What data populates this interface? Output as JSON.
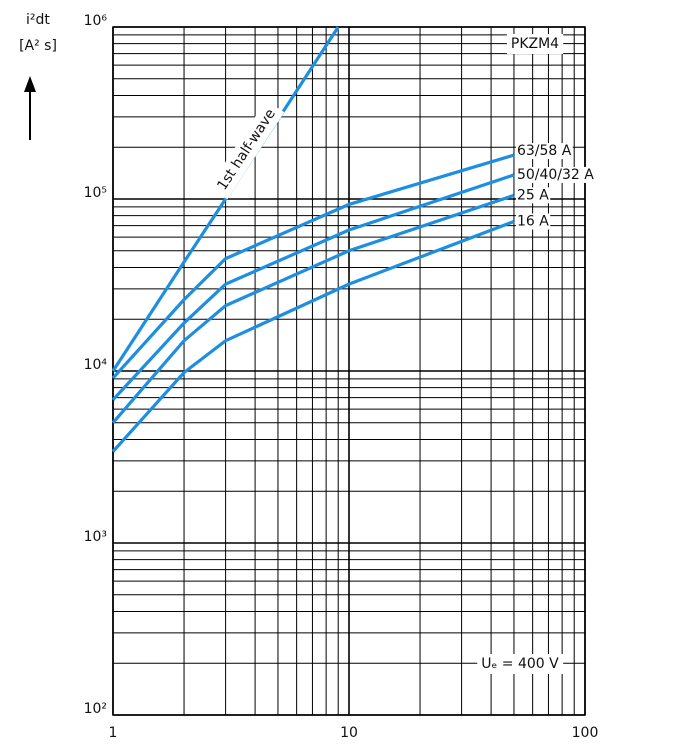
{
  "chart_data": {
    "type": "line",
    "ylabel_lines": [
      "i²dt",
      "[A² s]"
    ],
    "annotations": [
      "PKZM4",
      "Uₑ = 400 V"
    ],
    "log_x": true,
    "log_y": true,
    "grid": true,
    "minor_grid": true,
    "xlim": [
      1,
      100
    ],
    "xticks": [
      1,
      10,
      100
    ],
    "ylim": [
      100,
      1000000
    ],
    "yticks": [
      {
        "value": 100,
        "label": "10²"
      },
      {
        "value": 1000,
        "label": "10³"
      },
      {
        "value": 10000,
        "label": "10⁴"
      },
      {
        "value": 100000,
        "label": "10⁵"
      },
      {
        "value": 1000000,
        "label": "10⁶"
      }
    ],
    "series": [
      {
        "name": "1st half-wave",
        "color": "#1e8fe0",
        "x": [
          1,
          2,
          5,
          9
        ],
        "values": [
          10000,
          43000,
          290000,
          1000000
        ]
      },
      {
        "name": "63/58 A",
        "color": "#1e8fe0",
        "x": [
          1,
          2,
          3,
          10,
          50
        ],
        "values": [
          9100,
          26000,
          45000,
          93000,
          180000
        ]
      },
      {
        "name": "50/40/32 A",
        "color": "#1e8fe0",
        "x": [
          1,
          2,
          3,
          10,
          50
        ],
        "values": [
          6800,
          19000,
          32000,
          66000,
          138000
        ]
      },
      {
        "name": "25 A",
        "color": "#1e8fe0",
        "x": [
          1,
          2,
          3,
          10,
          50
        ],
        "values": [
          5000,
          15000,
          24000,
          50000,
          105000
        ]
      },
      {
        "name": "16 A",
        "color": "#1e8fe0",
        "x": [
          1,
          2,
          3,
          10,
          50
        ],
        "values": [
          3400,
          9800,
          15000,
          32000,
          74000
        ]
      }
    ]
  }
}
